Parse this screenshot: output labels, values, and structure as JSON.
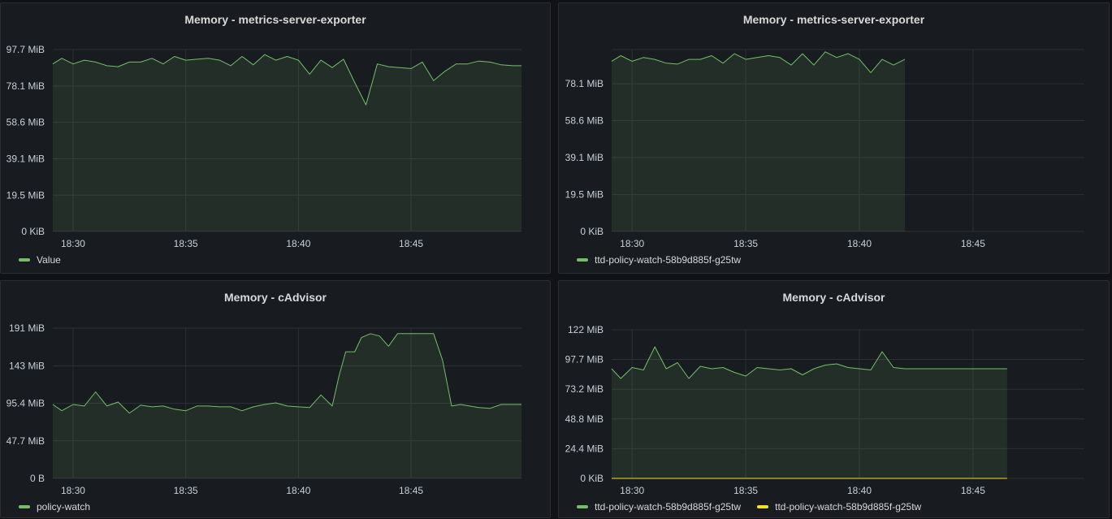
{
  "colors": {
    "green": "#73bf69",
    "yellow": "#fade2a",
    "grid": "#2c3036",
    "tick": "#c7d0d9"
  },
  "chart_data": [
    {
      "type": "area",
      "title": "Memory - metrics-server-exporter",
      "xlabel": "",
      "ylabel": "",
      "x_ticks": [
        "18:30",
        "18:35",
        "18:40",
        "18:45"
      ],
      "x_tick_minutes": [
        30,
        35,
        40,
        45
      ],
      "x_range": [
        29.1,
        49.9
      ],
      "y_ticks": [
        "0 KiB",
        "19.5 MiB",
        "39.1 MiB",
        "58.6 MiB",
        "78.1 MiB",
        "97.7 MiB"
      ],
      "y_tick_values": [
        0,
        19.5,
        39.1,
        58.6,
        78.1,
        97.7
      ],
      "ylim": [
        0,
        97.7
      ],
      "legend": "bottom-left",
      "series": [
        {
          "name": "Value",
          "color": "green",
          "x": [
            29.1,
            29.5,
            30.0,
            30.5,
            31.0,
            31.5,
            32.0,
            32.5,
            33.0,
            33.5,
            34.0,
            34.5,
            35.0,
            35.5,
            36.0,
            36.5,
            37.0,
            37.5,
            38.0,
            38.5,
            39.0,
            39.5,
            40.0,
            40.5,
            41.0,
            41.5,
            42.0,
            42.5,
            43.0,
            43.5,
            44.0,
            44.5,
            45.0,
            45.5,
            46.0,
            46.5,
            47.0,
            47.5,
            48.0,
            48.5,
            49.0,
            49.5,
            49.9
          ],
          "values": [
            90,
            93,
            90,
            92,
            91,
            89,
            88.5,
            91,
            91,
            93,
            90,
            94,
            92,
            92.5,
            93,
            92,
            89,
            94,
            89.5,
            95,
            92,
            94,
            92,
            84.5,
            92,
            88,
            92.5,
            80,
            68,
            90,
            88.5,
            88,
            87.5,
            91,
            81,
            86,
            90,
            90,
            91.5,
            91,
            89.5,
            89,
            89
          ]
        }
      ]
    },
    {
      "type": "area",
      "title": "Memory - metrics-server-exporter",
      "xlabel": "",
      "ylabel": "",
      "x_ticks": [
        "18:30",
        "18:35",
        "18:40",
        "18:45"
      ],
      "x_tick_minutes": [
        30,
        35,
        40,
        45
      ],
      "x_range": [
        29.1,
        49.9
      ],
      "y_ticks": [
        "0 KiB",
        "19.5 MiB",
        "39.1 MiB",
        "58.6 MiB",
        "78.1 MiB"
      ],
      "y_tick_values": [
        0,
        19.5,
        39.1,
        58.6,
        78.1
      ],
      "ylim": [
        0,
        96.2
      ],
      "legend": "bottom-left",
      "series": [
        {
          "name": "ttd-policy-watch-58b9d885f-g25tw",
          "color": "green",
          "x": [
            29.1,
            29.5,
            30.0,
            30.5,
            31.0,
            31.5,
            32.0,
            32.5,
            33.0,
            33.5,
            34.0,
            34.5,
            35.0,
            35.5,
            36.0,
            36.5,
            37.0,
            37.5,
            38.0,
            38.5,
            39.0,
            39.5,
            40.0,
            40.5,
            41.0,
            41.5,
            42.0
          ],
          "values": [
            90,
            93,
            90,
            92,
            91,
            89,
            88.5,
            91,
            91,
            93,
            89,
            94,
            91,
            92,
            93,
            92,
            88,
            94,
            88,
            95,
            92,
            94,
            91,
            84,
            91,
            88,
            91
          ]
        }
      ]
    },
    {
      "type": "area",
      "title": "Memory - cAdvisor",
      "xlabel": "",
      "ylabel": "",
      "x_ticks": [
        "18:30",
        "18:35",
        "18:40",
        "18:45"
      ],
      "x_tick_minutes": [
        30,
        35,
        40,
        45
      ],
      "x_range": [
        29.1,
        49.9
      ],
      "y_ticks": [
        "0 B",
        "47.7 MiB",
        "95.4 MiB",
        "143 MiB",
        "191 MiB"
      ],
      "y_tick_values": [
        0,
        47.7,
        95.4,
        143,
        191
      ],
      "ylim": [
        0,
        191
      ],
      "legend": "bottom-left",
      "series": [
        {
          "name": "policy-watch",
          "color": "green",
          "x": [
            29.1,
            29.5,
            30.0,
            30.5,
            31.0,
            31.5,
            32.0,
            32.5,
            33.0,
            33.5,
            34.0,
            34.5,
            35.0,
            35.5,
            36.0,
            36.5,
            37.0,
            37.5,
            38.0,
            38.5,
            39.0,
            39.5,
            40.0,
            40.5,
            41.0,
            41.5,
            41.8,
            42.1,
            42.5,
            42.8,
            43.2,
            43.6,
            44.0,
            44.4,
            44.8,
            45.2,
            45.6,
            46.0,
            46.4,
            46.8,
            47.2,
            47.6,
            48.0,
            48.5,
            49.0,
            49.5,
            49.9
          ],
          "values": [
            94,
            86,
            94,
            92,
            110,
            92,
            97,
            83,
            93,
            91,
            92,
            88,
            86,
            92,
            92,
            91,
            91,
            86,
            91,
            94,
            96,
            92,
            91,
            90,
            106,
            92,
            130,
            161,
            161,
            179,
            184,
            181,
            168,
            184,
            184,
            184,
            184,
            184,
            150,
            92,
            94,
            92,
            90,
            89,
            94,
            94,
            94
          ]
        }
      ]
    },
    {
      "type": "area",
      "title": "Memory - cAdvisor",
      "xlabel": "",
      "ylabel": "",
      "x_ticks": [
        "18:30",
        "18:35",
        "18:40",
        "18:45"
      ],
      "x_tick_minutes": [
        30,
        35,
        40,
        45
      ],
      "x_range": [
        29.1,
        49.9
      ],
      "y_ticks": [
        "0 KiB",
        "24.4 MiB",
        "48.8 MiB",
        "73.2 MiB",
        "97.7 MiB",
        "122 MiB"
      ],
      "y_tick_values": [
        0,
        24.4,
        48.8,
        73.2,
        97.7,
        122
      ],
      "ylim": [
        0,
        122
      ],
      "legend": "bottom-left",
      "series": [
        {
          "name": "ttd-policy-watch-58b9d885f-g25tw",
          "color": "green",
          "x": [
            29.1,
            29.5,
            30.0,
            30.5,
            31.0,
            31.5,
            32.0,
            32.5,
            33.0,
            33.5,
            34.0,
            34.5,
            35.0,
            35.5,
            36.0,
            36.5,
            37.0,
            37.5,
            38.0,
            38.5,
            39.0,
            39.5,
            40.0,
            40.5,
            41.0,
            41.5,
            42.0,
            42.5,
            43.0,
            43.5,
            44.0,
            44.5,
            45.0,
            45.5,
            46.0,
            46.5
          ],
          "values": [
            90,
            82,
            91,
            89,
            108,
            90,
            95,
            82,
            92,
            90,
            91,
            87,
            84,
            91,
            90,
            89,
            90,
            85,
            90,
            93,
            94,
            91,
            90,
            89,
            104,
            91,
            90,
            90,
            90,
            90,
            90,
            90,
            90,
            90,
            90,
            90
          ]
        },
        {
          "name": "ttd-policy-watch-58b9d885f-g25tw",
          "color": "yellow",
          "x": [
            29.1,
            46.5
          ],
          "values": [
            0,
            0
          ]
        }
      ]
    }
  ]
}
